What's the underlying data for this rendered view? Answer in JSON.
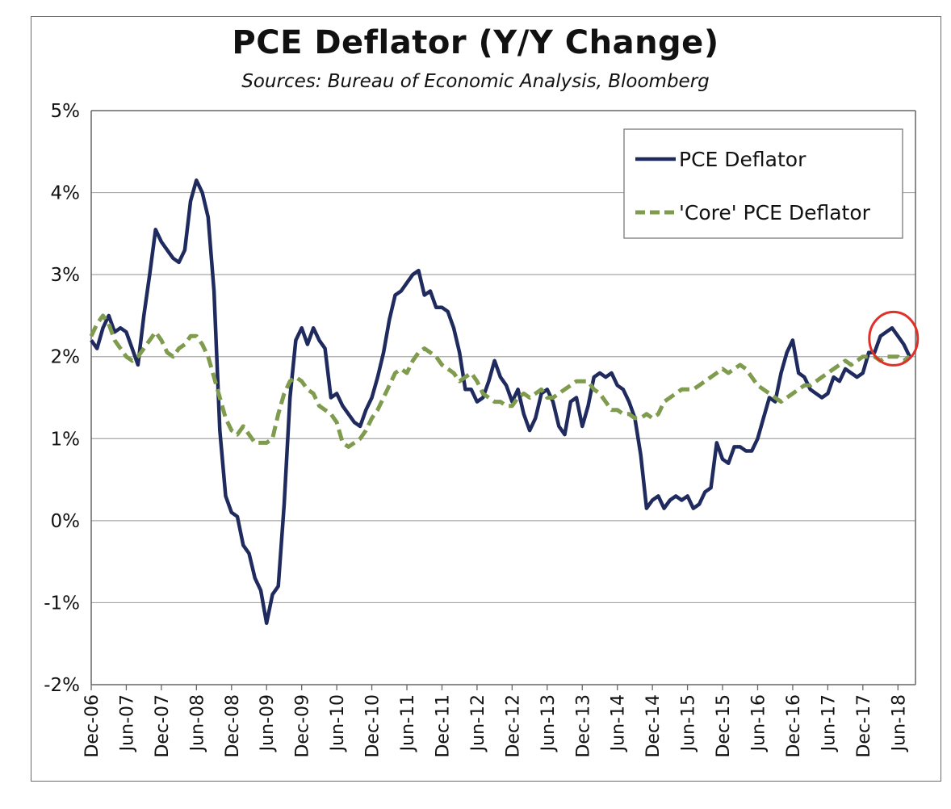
{
  "chart_data": {
    "type": "line",
    "title": "PCE Deflator (Y/Y Change)",
    "subtitle": "Sources: Bureau of Economic Analysis, Bloomberg",
    "xlabel": "",
    "ylabel": "",
    "ylim": [
      -2,
      5
    ],
    "y_ticks": [
      "5%",
      "4%",
      "3%",
      "2%",
      "1%",
      "0%",
      "-1%",
      "-2%"
    ],
    "x_ticks": [
      "Dec-06",
      "Jun-07",
      "Dec-07",
      "Jun-08",
      "Dec-08",
      "Jun-09",
      "Dec-09",
      "Jun-10",
      "Dec-10",
      "Jun-11",
      "Dec-11",
      "Jun-12",
      "Dec-12",
      "Jun-13",
      "Dec-13",
      "Jun-14",
      "Dec-14",
      "Jun-15",
      "Dec-15",
      "Jun-16",
      "Dec-16",
      "Jun-17",
      "Dec-17",
      "Jun-18"
    ],
    "x_range": [
      "Dec-06",
      "Sep-18"
    ],
    "grid": "horizontal",
    "legend_position": "top-right",
    "series": [
      {
        "name": "PCE Deflator",
        "color": "#1f2a5e",
        "style": "solid",
        "points": [
          [
            "Dec-06",
            2.2
          ],
          [
            "Jan-07",
            2.1
          ],
          [
            "Feb-07",
            2.35
          ],
          [
            "Mar-07",
            2.5
          ],
          [
            "Apr-07",
            2.3
          ],
          [
            "May-07",
            2.35
          ],
          [
            "Jun-07",
            2.3
          ],
          [
            "Jul-07",
            2.1
          ],
          [
            "Aug-07",
            1.9
          ],
          [
            "Sep-07",
            2.5
          ],
          [
            "Oct-07",
            3.0
          ],
          [
            "Nov-07",
            3.55
          ],
          [
            "Dec-07",
            3.4
          ],
          [
            "Jan-08",
            3.3
          ],
          [
            "Feb-08",
            3.2
          ],
          [
            "Mar-08",
            3.15
          ],
          [
            "Apr-08",
            3.3
          ],
          [
            "May-08",
            3.9
          ],
          [
            "Jun-08",
            4.15
          ],
          [
            "Jul-08",
            4.0
          ],
          [
            "Aug-08",
            3.7
          ],
          [
            "Sep-08",
            2.8
          ],
          [
            "Oct-08",
            1.1
          ],
          [
            "Nov-08",
            0.3
          ],
          [
            "Dec-08",
            0.1
          ],
          [
            "Jan-09",
            0.05
          ],
          [
            "Feb-09",
            -0.3
          ],
          [
            "Mar-09",
            -0.4
          ],
          [
            "Apr-09",
            -0.7
          ],
          [
            "May-09",
            -0.85
          ],
          [
            "Jun-09",
            -1.25
          ],
          [
            "Jul-09",
            -0.9
          ],
          [
            "Aug-09",
            -0.8
          ],
          [
            "Sep-09",
            0.2
          ],
          [
            "Oct-09",
            1.5
          ],
          [
            "Nov-09",
            2.2
          ],
          [
            "Dec-09",
            2.35
          ],
          [
            "Jan-10",
            2.15
          ],
          [
            "Feb-10",
            2.35
          ],
          [
            "Mar-10",
            2.2
          ],
          [
            "Apr-10",
            2.1
          ],
          [
            "May-10",
            1.5
          ],
          [
            "Jun-10",
            1.55
          ],
          [
            "Jul-10",
            1.4
          ],
          [
            "Aug-10",
            1.3
          ],
          [
            "Sep-10",
            1.2
          ],
          [
            "Oct-10",
            1.15
          ],
          [
            "Nov-10",
            1.35
          ],
          [
            "Dec-10",
            1.5
          ],
          [
            "Jan-11",
            1.75
          ],
          [
            "Feb-11",
            2.05
          ],
          [
            "Mar-11",
            2.45
          ],
          [
            "Apr-11",
            2.75
          ],
          [
            "May-11",
            2.8
          ],
          [
            "Jun-11",
            2.9
          ],
          [
            "Jul-11",
            3.0
          ],
          [
            "Aug-11",
            3.05
          ],
          [
            "Sep-11",
            2.75
          ],
          [
            "Oct-11",
            2.8
          ],
          [
            "Nov-11",
            2.6
          ],
          [
            "Dec-11",
            2.6
          ],
          [
            "Jan-12",
            2.55
          ],
          [
            "Feb-12",
            2.35
          ],
          [
            "Mar-12",
            2.05
          ],
          [
            "Apr-12",
            1.6
          ],
          [
            "May-12",
            1.6
          ],
          [
            "Jun-12",
            1.45
          ],
          [
            "Jul-12",
            1.5
          ],
          [
            "Aug-12",
            1.7
          ],
          [
            "Sep-12",
            1.95
          ],
          [
            "Oct-12",
            1.75
          ],
          [
            "Nov-12",
            1.65
          ],
          [
            "Dec-12",
            1.45
          ],
          [
            "Jan-13",
            1.6
          ],
          [
            "Feb-13",
            1.3
          ],
          [
            "Mar-13",
            1.1
          ],
          [
            "Apr-13",
            1.25
          ],
          [
            "May-13",
            1.55
          ],
          [
            "Jun-13",
            1.6
          ],
          [
            "Jul-13",
            1.45
          ],
          [
            "Aug-13",
            1.15
          ],
          [
            "Sep-13",
            1.05
          ],
          [
            "Oct-13",
            1.45
          ],
          [
            "Nov-13",
            1.5
          ],
          [
            "Dec-13",
            1.15
          ],
          [
            "Jan-14",
            1.4
          ],
          [
            "Feb-14",
            1.75
          ],
          [
            "Mar-14",
            1.8
          ],
          [
            "Apr-14",
            1.75
          ],
          [
            "May-14",
            1.8
          ],
          [
            "Jun-14",
            1.65
          ],
          [
            "Jul-14",
            1.6
          ],
          [
            "Aug-14",
            1.45
          ],
          [
            "Sep-14",
            1.25
          ],
          [
            "Oct-14",
            0.8
          ],
          [
            "Nov-14",
            0.15
          ],
          [
            "Dec-14",
            0.25
          ],
          [
            "Jan-15",
            0.3
          ],
          [
            "Feb-15",
            0.15
          ],
          [
            "Mar-15",
            0.25
          ],
          [
            "Apr-15",
            0.3
          ],
          [
            "May-15",
            0.25
          ],
          [
            "Jun-15",
            0.3
          ],
          [
            "Jul-15",
            0.15
          ],
          [
            "Aug-15",
            0.2
          ],
          [
            "Sep-15",
            0.35
          ],
          [
            "Oct-15",
            0.4
          ],
          [
            "Nov-15",
            0.95
          ],
          [
            "Dec-15",
            0.75
          ],
          [
            "Jan-16",
            0.7
          ],
          [
            "Feb-16",
            0.9
          ],
          [
            "Mar-16",
            0.9
          ],
          [
            "Apr-16",
            0.85
          ],
          [
            "May-16",
            0.85
          ],
          [
            "Jun-16",
            1.0
          ],
          [
            "Jul-16",
            1.25
          ],
          [
            "Aug-16",
            1.5
          ],
          [
            "Sep-16",
            1.45
          ],
          [
            "Oct-16",
            1.8
          ],
          [
            "Nov-16",
            2.05
          ],
          [
            "Dec-16",
            2.2
          ],
          [
            "Jan-17",
            1.8
          ],
          [
            "Feb-17",
            1.75
          ],
          [
            "Mar-17",
            1.6
          ],
          [
            "Apr-17",
            1.55
          ],
          [
            "May-17",
            1.5
          ],
          [
            "Jun-17",
            1.55
          ],
          [
            "Jul-17",
            1.75
          ],
          [
            "Aug-17",
            1.7
          ],
          [
            "Sep-17",
            1.85
          ],
          [
            "Oct-17",
            1.8
          ],
          [
            "Nov-17",
            1.75
          ],
          [
            "Dec-17",
            1.8
          ],
          [
            "Jan-18",
            2.05
          ],
          [
            "Feb-18",
            2.05
          ],
          [
            "Mar-18",
            2.25
          ],
          [
            "Apr-18",
            2.3
          ],
          [
            "May-18",
            2.35
          ],
          [
            "Jun-18",
            2.25
          ],
          [
            "Jul-18",
            2.15
          ],
          [
            "Aug-18",
            2.0
          ]
        ]
      },
      {
        "name": "'Core' PCE Deflator",
        "color": "#7f9b4e",
        "style": "dashed",
        "points": [
          [
            "Dec-06",
            2.25
          ],
          [
            "Jan-07",
            2.4
          ],
          [
            "Feb-07",
            2.5
          ],
          [
            "Mar-07",
            2.4
          ],
          [
            "Apr-07",
            2.2
          ],
          [
            "May-07",
            2.1
          ],
          [
            "Jun-07",
            2.0
          ],
          [
            "Jul-07",
            1.95
          ],
          [
            "Aug-07",
            2.0
          ],
          [
            "Sep-07",
            2.1
          ],
          [
            "Oct-07",
            2.2
          ],
          [
            "Nov-07",
            2.3
          ],
          [
            "Dec-07",
            2.2
          ],
          [
            "Jan-08",
            2.05
          ],
          [
            "Feb-08",
            2.0
          ],
          [
            "Mar-08",
            2.1
          ],
          [
            "Apr-08",
            2.15
          ],
          [
            "May-08",
            2.25
          ],
          [
            "Jun-08",
            2.25
          ],
          [
            "Jul-08",
            2.15
          ],
          [
            "Aug-08",
            2.0
          ],
          [
            "Sep-08",
            1.75
          ],
          [
            "Oct-08",
            1.5
          ],
          [
            "Nov-08",
            1.25
          ],
          [
            "Dec-08",
            1.1
          ],
          [
            "Jan-09",
            1.05
          ],
          [
            "Feb-09",
            1.15
          ],
          [
            "Mar-09",
            1.05
          ],
          [
            "Apr-09",
            0.95
          ],
          [
            "May-09",
            0.95
          ],
          [
            "Jun-09",
            0.95
          ],
          [
            "Jul-09",
            1.0
          ],
          [
            "Aug-09",
            1.3
          ],
          [
            "Sep-09",
            1.55
          ],
          [
            "Oct-09",
            1.7
          ],
          [
            "Nov-09",
            1.75
          ],
          [
            "Dec-09",
            1.7
          ],
          [
            "Jan-10",
            1.6
          ],
          [
            "Feb-10",
            1.55
          ],
          [
            "Mar-10",
            1.4
          ],
          [
            "Apr-10",
            1.35
          ],
          [
            "May-10",
            1.3
          ],
          [
            "Jun-10",
            1.2
          ],
          [
            "Jul-10",
            0.95
          ],
          [
            "Aug-10",
            0.9
          ],
          [
            "Sep-10",
            0.95
          ],
          [
            "Oct-10",
            1.0
          ],
          [
            "Nov-10",
            1.1
          ],
          [
            "Dec-10",
            1.25
          ],
          [
            "Jan-11",
            1.35
          ],
          [
            "Feb-11",
            1.5
          ],
          [
            "Mar-11",
            1.65
          ],
          [
            "Apr-11",
            1.8
          ],
          [
            "May-11",
            1.85
          ],
          [
            "Jun-11",
            1.8
          ],
          [
            "Jul-11",
            1.95
          ],
          [
            "Aug-11",
            2.05
          ],
          [
            "Sep-11",
            2.1
          ],
          [
            "Oct-11",
            2.05
          ],
          [
            "Nov-11",
            2.0
          ],
          [
            "Dec-11",
            1.9
          ],
          [
            "Jan-12",
            1.85
          ],
          [
            "Feb-12",
            1.8
          ],
          [
            "Mar-12",
            1.7
          ],
          [
            "Apr-12",
            1.75
          ],
          [
            "May-12",
            1.8
          ],
          [
            "Jun-12",
            1.7
          ],
          [
            "Jul-12",
            1.55
          ],
          [
            "Aug-12",
            1.5
          ],
          [
            "Sep-12",
            1.45
          ],
          [
            "Oct-12",
            1.45
          ],
          [
            "Nov-12",
            1.4
          ],
          [
            "Dec-12",
            1.4
          ],
          [
            "Jan-13",
            1.5
          ],
          [
            "Feb-13",
            1.55
          ],
          [
            "Mar-13",
            1.5
          ],
          [
            "Apr-13",
            1.55
          ],
          [
            "May-13",
            1.6
          ],
          [
            "Jun-13",
            1.5
          ],
          [
            "Jul-13",
            1.5
          ],
          [
            "Aug-13",
            1.55
          ],
          [
            "Sep-13",
            1.6
          ],
          [
            "Oct-13",
            1.65
          ],
          [
            "Nov-13",
            1.7
          ],
          [
            "Dec-13",
            1.7
          ],
          [
            "Jan-14",
            1.7
          ],
          [
            "Feb-14",
            1.6
          ],
          [
            "Mar-14",
            1.55
          ],
          [
            "Apr-14",
            1.45
          ],
          [
            "May-14",
            1.35
          ],
          [
            "Jun-14",
            1.35
          ],
          [
            "Jul-14",
            1.3
          ],
          [
            "Aug-14",
            1.3
          ],
          [
            "Sep-14",
            1.25
          ],
          [
            "Oct-14",
            1.25
          ],
          [
            "Nov-14",
            1.3
          ],
          [
            "Dec-14",
            1.25
          ],
          [
            "Jan-15",
            1.3
          ],
          [
            "Feb-15",
            1.45
          ],
          [
            "Mar-15",
            1.5
          ],
          [
            "Apr-15",
            1.55
          ],
          [
            "May-15",
            1.6
          ],
          [
            "Jun-15",
            1.6
          ],
          [
            "Jul-15",
            1.6
          ],
          [
            "Aug-15",
            1.65
          ],
          [
            "Sep-15",
            1.7
          ],
          [
            "Oct-15",
            1.75
          ],
          [
            "Nov-15",
            1.8
          ],
          [
            "Dec-15",
            1.85
          ],
          [
            "Jan-16",
            1.8
          ],
          [
            "Feb-16",
            1.85
          ],
          [
            "Mar-16",
            1.9
          ],
          [
            "Apr-16",
            1.85
          ],
          [
            "May-16",
            1.75
          ],
          [
            "Jun-16",
            1.65
          ],
          [
            "Jul-16",
            1.6
          ],
          [
            "Aug-16",
            1.55
          ],
          [
            "Sep-16",
            1.5
          ],
          [
            "Oct-16",
            1.45
          ],
          [
            "Nov-16",
            1.5
          ],
          [
            "Dec-16",
            1.55
          ],
          [
            "Jan-17",
            1.6
          ],
          [
            "Feb-17",
            1.65
          ],
          [
            "Mar-17",
            1.65
          ],
          [
            "Apr-17",
            1.7
          ],
          [
            "May-17",
            1.75
          ],
          [
            "Jun-17",
            1.8
          ],
          [
            "Jul-17",
            1.85
          ],
          [
            "Aug-17",
            1.9
          ],
          [
            "Sep-17",
            1.95
          ],
          [
            "Oct-17",
            1.9
          ],
          [
            "Nov-17",
            1.95
          ],
          [
            "Dec-17",
            2.0
          ],
          [
            "Jan-18",
            2.0
          ],
          [
            "Feb-18",
            2.0
          ],
          [
            "Mar-18",
            1.95
          ],
          [
            "Apr-18",
            2.0
          ],
          [
            "May-18",
            2.0
          ],
          [
            "Jun-18",
            2.0
          ],
          [
            "Jul-18",
            1.95
          ],
          [
            "Aug-18",
            2.0
          ]
        ]
      }
    ],
    "annotations": [
      {
        "type": "circle",
        "color": "#e0302a",
        "around": [
          "Apr-18",
          2.2
        ]
      }
    ]
  }
}
